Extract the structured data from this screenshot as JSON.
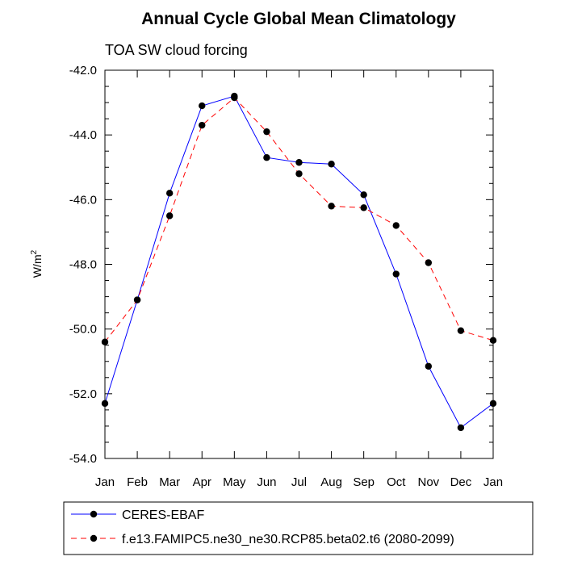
{
  "chart_data": {
    "type": "line",
    "title": "Annual Cycle Global Mean Climatology",
    "subtitle": "TOA SW cloud forcing",
    "xlabel": "",
    "ylabel_main": "W/m",
    "ylabel_sup": "2",
    "categories": [
      "Jan",
      "Feb",
      "Mar",
      "Apr",
      "May",
      "Jun",
      "Jul",
      "Aug",
      "Sep",
      "Oct",
      "Nov",
      "Dec",
      "Jan"
    ],
    "ylim": [
      -54.0,
      -42.0
    ],
    "yticks": [
      -42.0,
      -44.0,
      -46.0,
      -48.0,
      -50.0,
      -52.0,
      -54.0
    ],
    "ytick_labels": [
      "-42.0",
      "-44.0",
      "-46.0",
      "-48.0",
      "-50.0",
      "-52.0",
      "-54.0"
    ],
    "series": [
      {
        "name": "CERES-EBAF",
        "color": "#0000ff",
        "dash": "solid",
        "values": [
          -52.3,
          -49.1,
          -45.8,
          -43.1,
          -42.8,
          -44.7,
          -44.85,
          -44.9,
          -45.85,
          -48.3,
          -51.15,
          -53.05,
          -52.3
        ]
      },
      {
        "name": "f.e13.FAMIPC5.ne30_ne30.RCP85.beta02.t6 (2080-2099)",
        "color": "#ff0000",
        "dash": "dashed",
        "values": [
          -50.4,
          -49.1,
          -46.5,
          -43.7,
          -42.85,
          -43.9,
          -45.2,
          -46.2,
          -46.25,
          -46.8,
          -47.95,
          -50.05,
          -50.35
        ]
      }
    ],
    "legend_position": "bottom"
  }
}
